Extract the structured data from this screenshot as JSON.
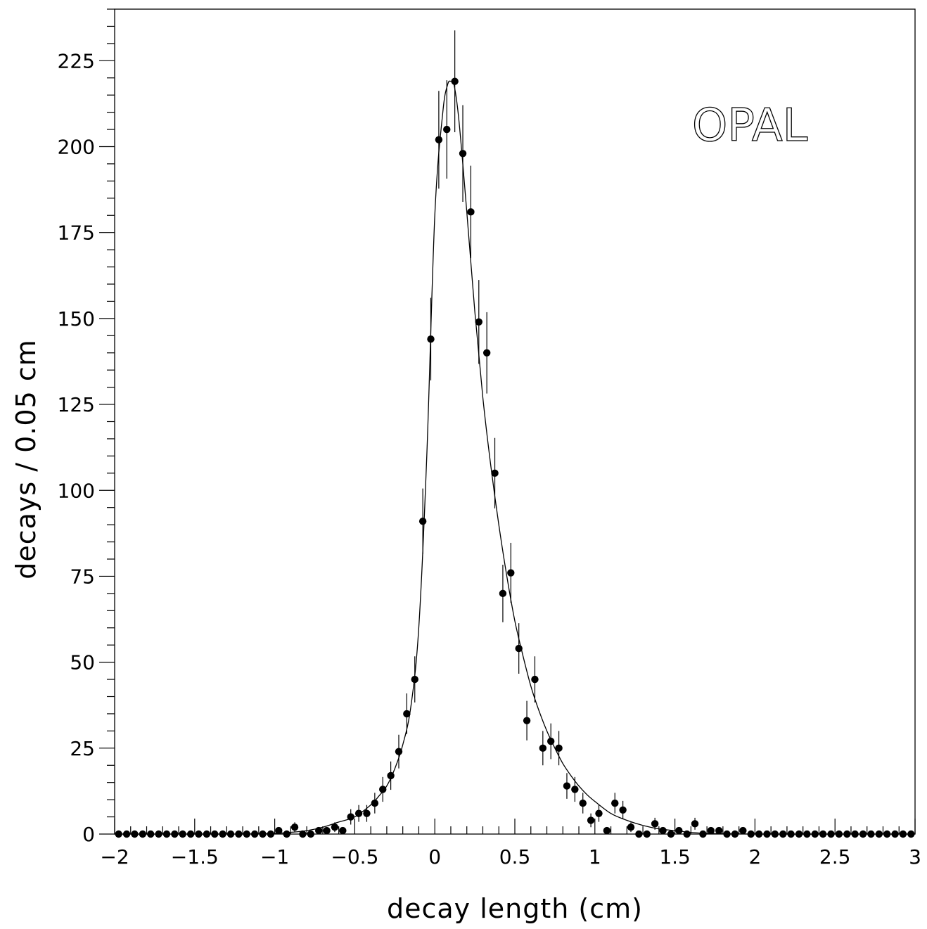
{
  "chart_data": {
    "type": "scatter",
    "title": "",
    "xlabel": "decay length (cm)",
    "ylabel": "decays / 0.05 cm",
    "annotation": "OPAL",
    "xlim": [
      -2,
      3
    ],
    "ylim": [
      0,
      240
    ],
    "grid": false,
    "x_ticks": [
      -2,
      -1.5,
      -1,
      -0.5,
      0,
      0.5,
      1,
      1.5,
      2,
      2.5,
      3
    ],
    "x_tick_labels": [
      "−2",
      "−1.5",
      "−1",
      "−0.5",
      "0",
      "0.5",
      "1",
      "1.5",
      "2",
      "2.5",
      "3"
    ],
    "y_ticks": [
      0,
      25,
      50,
      75,
      100,
      125,
      150,
      175,
      200,
      225
    ],
    "y_tick_labels": [
      "0",
      "25",
      "50",
      "75",
      "100",
      "125",
      "150",
      "175",
      "200",
      "225"
    ],
    "series": [
      {
        "style": "points-with-error-bars",
        "color": "#000000",
        "x": [
          -1.975,
          -1.925,
          -1.875,
          -1.825,
          -1.775,
          -1.725,
          -1.675,
          -1.625,
          -1.575,
          -1.525,
          -1.475,
          -1.425,
          -1.375,
          -1.325,
          -1.275,
          -1.225,
          -1.175,
          -1.125,
          -1.075,
          -1.025,
          -0.975,
          -0.925,
          -0.875,
          -0.825,
          -0.775,
          -0.725,
          -0.675,
          -0.625,
          -0.575,
          -0.525,
          -0.475,
          -0.425,
          -0.375,
          -0.325,
          -0.275,
          -0.225,
          -0.175,
          -0.125,
          -0.075,
          -0.025,
          0.025,
          0.075,
          0.125,
          0.175,
          0.225,
          0.275,
          0.325,
          0.375,
          0.425,
          0.475,
          0.525,
          0.575,
          0.625,
          0.675,
          0.725,
          0.775,
          0.825,
          0.875,
          0.925,
          0.975,
          1.025,
          1.075,
          1.125,
          1.175,
          1.225,
          1.275,
          1.325,
          1.375,
          1.425,
          1.475,
          1.525,
          1.575,
          1.625,
          1.675,
          1.725,
          1.775,
          1.825,
          1.875,
          1.925,
          1.975,
          2.025,
          2.075,
          2.125,
          2.175,
          2.225,
          2.275,
          2.325,
          2.375,
          2.425,
          2.475,
          2.525,
          2.575,
          2.625,
          2.675,
          2.725,
          2.775,
          2.825,
          2.875,
          2.925,
          2.975
        ],
        "y": [
          0,
          0,
          0,
          0,
          0,
          0,
          0,
          0,
          0,
          0,
          0,
          0,
          0,
          0,
          0,
          0,
          0,
          0,
          0,
          0,
          1,
          0,
          2,
          0,
          0,
          1,
          1,
          2,
          1,
          5,
          6,
          6,
          9,
          13,
          17,
          24,
          35,
          45,
          91,
          144,
          202,
          205,
          219,
          198,
          181,
          149,
          140,
          105,
          70,
          76,
          54,
          33,
          45,
          25,
          27,
          25,
          14,
          13,
          9,
          4,
          6,
          1,
          9,
          7,
          2,
          0,
          0,
          3,
          1,
          0,
          1,
          0,
          3,
          0,
          1,
          1,
          0,
          0,
          1,
          0,
          0,
          0,
          0,
          0,
          0,
          0,
          0,
          0,
          0,
          0,
          0,
          0,
          0,
          0,
          0,
          0,
          0,
          0,
          0,
          0
        ]
      },
      {
        "style": "fit-curve",
        "color": "#000000",
        "x": [
          -2.0,
          -1.5,
          -1.2,
          -1.0,
          -0.9,
          -0.8,
          -0.7,
          -0.6,
          -0.5,
          -0.4,
          -0.35,
          -0.3,
          -0.25,
          -0.2,
          -0.15,
          -0.1,
          -0.05,
          0.0,
          0.05,
          0.08,
          0.1,
          0.12,
          0.15,
          0.2,
          0.25,
          0.3,
          0.35,
          0.4,
          0.45,
          0.5,
          0.55,
          0.6,
          0.65,
          0.7,
          0.75,
          0.8,
          0.85,
          0.9,
          0.95,
          1.0,
          1.1,
          1.2,
          1.3,
          1.4,
          1.5,
          1.6,
          1.7,
          2.0,
          2.5,
          3.0
        ],
        "y": [
          0,
          0,
          0,
          0.2,
          0.5,
          1,
          2,
          3.5,
          5,
          8.5,
          11,
          14,
          19,
          26,
          37,
          60,
          110,
          180,
          210,
          218,
          219,
          218,
          208,
          181,
          152,
          127,
          107,
          90,
          75,
          62,
          52,
          43,
          36,
          30,
          25,
          20.5,
          17,
          14,
          11.5,
          9.5,
          6,
          4,
          2.5,
          1.5,
          1,
          0.5,
          0.2,
          0,
          0,
          0
        ]
      }
    ]
  }
}
